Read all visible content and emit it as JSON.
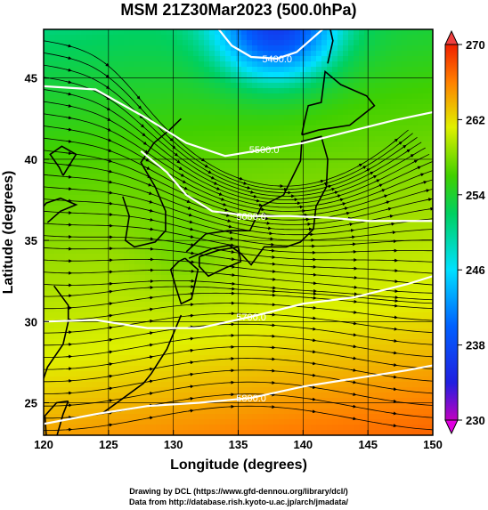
{
  "chart_data": {
    "type": "heatmap",
    "title": "MSM 21Z30Mar2023 (500.0hPa)",
    "xlabel": "Longitude (degrees)",
    "ylabel": "Latitude  (degrees)",
    "xlim": [
      120,
      150
    ],
    "ylim": [
      23,
      48
    ],
    "x_ticks": [
      "120",
      "125",
      "130",
      "135",
      "140",
      "145",
      "150"
    ],
    "y_ticks": [
      "25",
      "30",
      "35",
      "40",
      "45"
    ],
    "colorbar": {
      "min": 230,
      "max": 270,
      "ticks": [
        "230",
        "238",
        "246",
        "254",
        "262",
        "270"
      ],
      "extend": "both"
    },
    "contours": [
      {
        "label": "5400.0",
        "points": [
          [
            133.5,
            48
          ],
          [
            134.5,
            47
          ],
          [
            136,
            46.3
          ],
          [
            138,
            46.2
          ],
          [
            139.5,
            46.6
          ],
          [
            140.5,
            47.3
          ],
          [
            141.5,
            48
          ]
        ]
      },
      {
        "label": "5500.0",
        "points": [
          [
            120,
            44.5
          ],
          [
            124,
            44.3
          ],
          [
            128,
            42.5
          ],
          [
            131,
            41
          ],
          [
            134,
            40.2
          ],
          [
            137,
            40.6
          ],
          [
            140,
            41
          ],
          [
            143,
            41.6
          ],
          [
            147,
            42.4
          ],
          [
            150,
            42.9
          ]
        ]
      },
      {
        "label": "5600.0",
        "points": [
          [
            127.5,
            40.5
          ],
          [
            129.5,
            39.2
          ],
          [
            131,
            37.8
          ],
          [
            133,
            36.8
          ],
          [
            136,
            36.5
          ],
          [
            139,
            36.5
          ],
          [
            142,
            36.4
          ],
          [
            145,
            36.2
          ],
          [
            150,
            36.2
          ]
        ]
      },
      {
        "label": "5700.0",
        "points": [
          [
            120,
            30
          ],
          [
            124,
            30.1
          ],
          [
            128,
            29.6
          ],
          [
            132,
            29.6
          ],
          [
            136,
            30.3
          ],
          [
            140,
            31.1
          ],
          [
            144,
            31.5
          ],
          [
            148,
            32.3
          ],
          [
            150,
            32.8
          ]
        ]
      },
      {
        "label": "5800.0",
        "points": [
          [
            120,
            23.7
          ],
          [
            124,
            24.3
          ],
          [
            128,
            24.8
          ],
          [
            132,
            25
          ],
          [
            136,
            25.3
          ],
          [
            140,
            26
          ],
          [
            144,
            26.5
          ],
          [
            148,
            27
          ],
          [
            150,
            27.3
          ]
        ]
      }
    ]
  },
  "footer": {
    "line1": "Drawing by DCL (https://www.gfd-dennou.org/library/dcl/)",
    "line2": "Data from http://database.rish.kyoto-u.ac.jp/arch/jmadata/"
  }
}
